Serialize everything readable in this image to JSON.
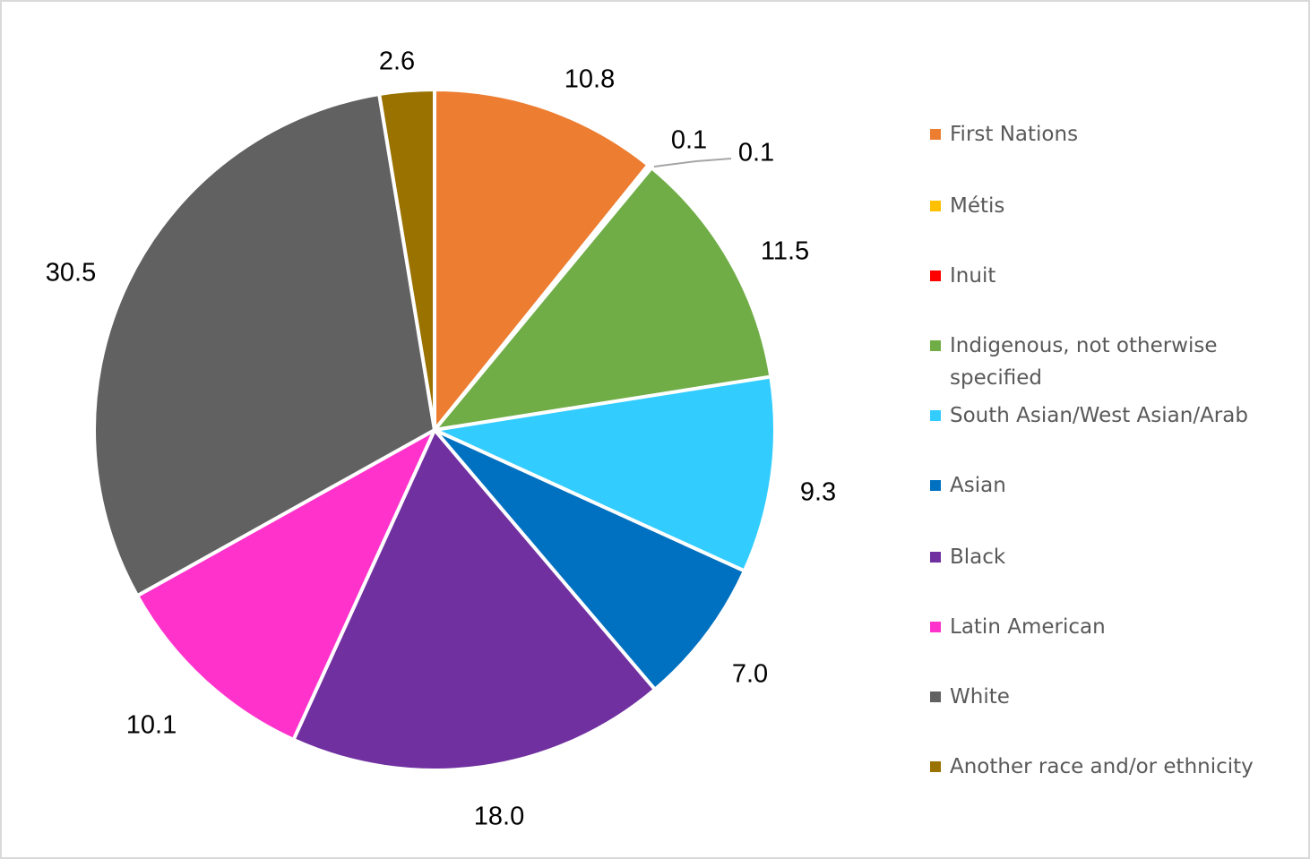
{
  "chart_data": {
    "type": "pie",
    "title": "",
    "legend_position": "right",
    "slices": [
      {
        "label": "First Nations",
        "value": 10.8,
        "display": "10.8",
        "color": "#ED7D31"
      },
      {
        "label": "Métis",
        "value": 0.1,
        "display": "0.1",
        "color": "#FFC000"
      },
      {
        "label": "Inuit",
        "value": 0.1,
        "display": "0.1",
        "color": "#FF0000"
      },
      {
        "label": "Indigenous, not otherwise specified",
        "value": 11.5,
        "display": "11.5",
        "color": "#70AD47"
      },
      {
        "label": "South Asian/West Asian/Arab",
        "value": 9.3,
        "display": "9.3",
        "color": "#33CCFF"
      },
      {
        "label": "Asian",
        "value": 7.0,
        "display": "7.0",
        "color": "#0070C0"
      },
      {
        "label": "Black",
        "value": 18.0,
        "display": "18.0",
        "color": "#7030A0"
      },
      {
        "label": "Latin American",
        "value": 10.1,
        "display": "10.1",
        "color": "#FF33CC"
      },
      {
        "label": "White",
        "value": 30.5,
        "display": "30.5",
        "color": "#616161"
      },
      {
        "label": "Another race and/or ethnicity",
        "value": 2.6,
        "display": "2.6",
        "color": "#9A7200"
      }
    ]
  }
}
